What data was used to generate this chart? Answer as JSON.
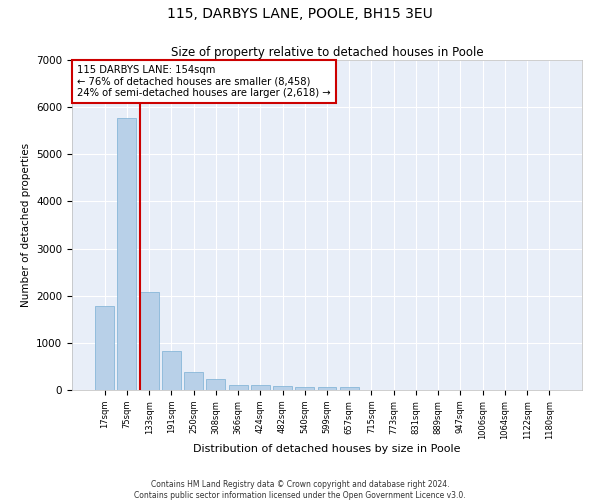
{
  "title": "115, DARBYS LANE, POOLE, BH15 3EU",
  "subtitle": "Size of property relative to detached houses in Poole",
  "xlabel": "Distribution of detached houses by size in Poole",
  "ylabel": "Number of detached properties",
  "footnote1": "Contains HM Land Registry data © Crown copyright and database right 2024.",
  "footnote2": "Contains public sector information licensed under the Open Government Licence v3.0.",
  "bar_color": "#b8d0e8",
  "bar_edge_color": "#7aafd4",
  "background_color": "#e8eef8",
  "grid_color": "#ffffff",
  "annotation_box_color": "#cc0000",
  "annotation_line_color": "#cc0000",
  "categories": [
    "17sqm",
    "75sqm",
    "133sqm",
    "191sqm",
    "250sqm",
    "308sqm",
    "366sqm",
    "424sqm",
    "482sqm",
    "540sqm",
    "599sqm",
    "657sqm",
    "715sqm",
    "773sqm",
    "831sqm",
    "889sqm",
    "947sqm",
    "1006sqm",
    "1064sqm",
    "1122sqm",
    "1180sqm"
  ],
  "values": [
    1780,
    5780,
    2080,
    830,
    390,
    230,
    115,
    115,
    75,
    60,
    70,
    60,
    0,
    0,
    0,
    0,
    0,
    0,
    0,
    0,
    0
  ],
  "property_line_x": 2,
  "annotation_text": "115 DARBYS LANE: 154sqm\n← 76% of detached houses are smaller (8,458)\n24% of semi-detached houses are larger (2,618) →",
  "ylim": [
    0,
    7000
  ],
  "yticks": [
    0,
    1000,
    2000,
    3000,
    4000,
    5000,
    6000,
    7000
  ]
}
